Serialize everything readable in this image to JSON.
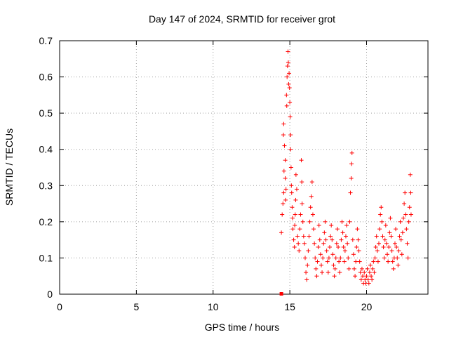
{
  "chart_data": {
    "type": "scatter",
    "title": "Day 147 of 2024, SRMTID for receiver grot",
    "xlabel": "GPS time / hours",
    "ylabel": "SRMTID / TECUs",
    "xlim": [
      0,
      24
    ],
    "ylim": [
      0,
      0.7
    ],
    "xticks": [
      0,
      5,
      10,
      15,
      20
    ],
    "xtick_labels": [
      "0",
      "5",
      "10",
      "15",
      "20"
    ],
    "yticks": [
      0,
      0.1,
      0.2,
      0.3,
      0.4,
      0.5,
      0.6,
      0.7
    ],
    "ytick_labels": [
      "0",
      "0.1",
      "0.2",
      "0.3",
      "0.4",
      "0.5",
      "0.6",
      "0.7"
    ],
    "grid": true,
    "marker": "+",
    "color": "#ff0000",
    "special_points": [
      {
        "x": 14.45,
        "y": 0.0,
        "marker": "square"
      }
    ],
    "series": [
      {
        "name": "SRMTID",
        "points": [
          [
            14.45,
            0.17
          ],
          [
            14.5,
            0.22
          ],
          [
            14.55,
            0.25
          ],
          [
            14.6,
            0.28
          ],
          [
            14.62,
            0.34
          ],
          [
            14.58,
            0.44
          ],
          [
            14.6,
            0.47
          ],
          [
            14.65,
            0.41
          ],
          [
            14.7,
            0.37
          ],
          [
            14.7,
            0.32
          ],
          [
            14.72,
            0.26
          ],
          [
            14.75,
            0.29
          ],
          [
            14.78,
            0.55
          ],
          [
            14.8,
            0.52
          ],
          [
            14.82,
            0.6
          ],
          [
            14.85,
            0.63
          ],
          [
            14.88,
            0.67
          ],
          [
            14.9,
            0.64
          ],
          [
            14.92,
            0.58
          ],
          [
            14.95,
            0.61
          ],
          [
            14.98,
            0.57
          ],
          [
            15.0,
            0.53
          ],
          [
            15.02,
            0.49
          ],
          [
            15.05,
            0.44
          ],
          [
            15.05,
            0.4
          ],
          [
            15.08,
            0.35
          ],
          [
            15.1,
            0.3
          ],
          [
            15.12,
            0.28
          ],
          [
            15.15,
            0.24
          ],
          [
            15.18,
            0.21
          ],
          [
            15.2,
            0.18
          ],
          [
            15.25,
            0.15
          ],
          [
            15.3,
            0.13
          ],
          [
            15.32,
            0.19
          ],
          [
            15.35,
            0.22
          ],
          [
            15.38,
            0.26
          ],
          [
            15.4,
            0.33
          ],
          [
            15.45,
            0.29
          ],
          [
            15.5,
            0.16
          ],
          [
            15.55,
            0.14
          ],
          [
            15.6,
            0.12
          ],
          [
            15.65,
            0.18
          ],
          [
            15.7,
            0.22
          ],
          [
            15.75,
            0.37
          ],
          [
            15.78,
            0.31
          ],
          [
            15.8,
            0.25
          ],
          [
            15.85,
            0.2
          ],
          [
            15.9,
            0.16
          ],
          [
            15.95,
            0.14
          ],
          [
            16.0,
            0.1
          ],
          [
            16.05,
            0.06
          ],
          [
            16.1,
            0.04
          ],
          [
            16.15,
            0.08
          ],
          [
            16.2,
            0.12
          ],
          [
            16.25,
            0.16
          ],
          [
            16.3,
            0.2
          ],
          [
            16.35,
            0.24
          ],
          [
            16.4,
            0.27
          ],
          [
            16.45,
            0.31
          ],
          [
            16.5,
            0.22
          ],
          [
            16.55,
            0.18
          ],
          [
            16.6,
            0.14
          ],
          [
            16.65,
            0.1
          ],
          [
            16.7,
            0.07
          ],
          [
            16.75,
            0.05
          ],
          [
            16.8,
            0.09
          ],
          [
            16.85,
            0.13
          ],
          [
            16.9,
            0.19
          ],
          [
            16.95,
            0.15
          ],
          [
            17.0,
            0.11
          ],
          [
            17.05,
            0.08
          ],
          [
            17.1,
            0.06
          ],
          [
            17.15,
            0.1
          ],
          [
            17.2,
            0.14
          ],
          [
            17.25,
            0.17
          ],
          [
            17.3,
            0.2
          ],
          [
            17.35,
            0.15
          ],
          [
            17.4,
            0.12
          ],
          [
            17.45,
            0.09
          ],
          [
            17.5,
            0.06
          ],
          [
            17.55,
            0.1
          ],
          [
            17.6,
            0.13
          ],
          [
            17.65,
            0.16
          ],
          [
            17.7,
            0.19
          ],
          [
            17.75,
            0.15
          ],
          [
            17.8,
            0.11
          ],
          [
            17.85,
            0.08
          ],
          [
            17.9,
            0.05
          ],
          [
            17.95,
            0.07
          ],
          [
            18.0,
            0.1
          ],
          [
            18.05,
            0.14
          ],
          [
            18.1,
            0.18
          ],
          [
            18.15,
            0.13
          ],
          [
            18.2,
            0.09
          ],
          [
            18.25,
            0.06
          ],
          [
            18.3,
            0.1
          ],
          [
            18.35,
            0.15
          ],
          [
            18.4,
            0.2
          ],
          [
            18.45,
            0.17
          ],
          [
            18.5,
            0.13
          ],
          [
            18.55,
            0.09
          ],
          [
            18.6,
            0.12
          ],
          [
            18.65,
            0.16
          ],
          [
            18.7,
            0.19
          ],
          [
            18.75,
            0.14
          ],
          [
            18.8,
            0.1
          ],
          [
            18.85,
            0.07
          ],
          [
            18.9,
            0.2
          ],
          [
            18.95,
            0.28
          ],
          [
            19.0,
            0.32
          ],
          [
            19.02,
            0.36
          ],
          [
            19.05,
            0.39
          ],
          [
            19.1,
            0.15
          ],
          [
            19.15,
            0.11
          ],
          [
            19.2,
            0.07
          ],
          [
            19.25,
            0.05
          ],
          [
            19.3,
            0.09
          ],
          [
            19.35,
            0.13
          ],
          [
            19.4,
            0.18
          ],
          [
            19.45,
            0.15
          ],
          [
            19.5,
            0.12
          ],
          [
            19.55,
            0.09
          ],
          [
            19.6,
            0.06
          ],
          [
            19.65,
            0.04
          ],
          [
            19.7,
            0.07
          ],
          [
            19.75,
            0.05
          ],
          [
            19.8,
            0.03
          ],
          [
            19.85,
            0.06
          ],
          [
            19.9,
            0.04
          ],
          [
            19.95,
            0.03
          ],
          [
            20.0,
            0.05
          ],
          [
            20.05,
            0.07
          ],
          [
            20.1,
            0.04
          ],
          [
            20.15,
            0.03
          ],
          [
            20.2,
            0.06
          ],
          [
            20.25,
            0.08
          ],
          [
            20.3,
            0.05
          ],
          [
            20.35,
            0.04
          ],
          [
            20.4,
            0.07
          ],
          [
            20.45,
            0.09
          ],
          [
            20.5,
            0.06
          ],
          [
            20.55,
            0.1
          ],
          [
            20.6,
            0.13
          ],
          [
            20.65,
            0.16
          ],
          [
            20.7,
            0.12
          ],
          [
            20.75,
            0.09
          ],
          [
            20.8,
            0.14
          ],
          [
            20.85,
            0.18
          ],
          [
            20.9,
            0.22
          ],
          [
            20.95,
            0.24
          ],
          [
            21.0,
            0.2
          ],
          [
            21.05,
            0.16
          ],
          [
            21.1,
            0.13
          ],
          [
            21.15,
            0.1
          ],
          [
            21.2,
            0.15
          ],
          [
            21.25,
            0.19
          ],
          [
            21.3,
            0.14
          ],
          [
            21.35,
            0.11
          ],
          [
            21.4,
            0.09
          ],
          [
            21.45,
            0.13
          ],
          [
            21.5,
            0.17
          ],
          [
            21.55,
            0.21
          ],
          [
            21.6,
            0.16
          ],
          [
            21.65,
            0.12
          ],
          [
            21.7,
            0.09
          ],
          [
            21.75,
            0.07
          ],
          [
            21.8,
            0.1
          ],
          [
            21.85,
            0.14
          ],
          [
            21.9,
            0.18
          ],
          [
            21.95,
            0.13
          ],
          [
            22.0,
            0.1
          ],
          [
            22.05,
            0.08
          ],
          [
            22.1,
            0.12
          ],
          [
            22.15,
            0.16
          ],
          [
            22.2,
            0.2
          ],
          [
            22.25,
            0.15
          ],
          [
            22.3,
            0.11
          ],
          [
            22.35,
            0.17
          ],
          [
            22.4,
            0.21
          ],
          [
            22.45,
            0.25
          ],
          [
            22.5,
            0.28
          ],
          [
            22.55,
            0.22
          ],
          [
            22.6,
            0.18
          ],
          [
            22.65,
            0.14
          ],
          [
            22.7,
            0.1
          ],
          [
            22.75,
            0.2
          ],
          [
            22.8,
            0.24
          ],
          [
            22.85,
            0.33
          ],
          [
            22.88,
            0.28
          ],
          [
            22.9,
            0.22
          ]
        ]
      }
    ]
  }
}
